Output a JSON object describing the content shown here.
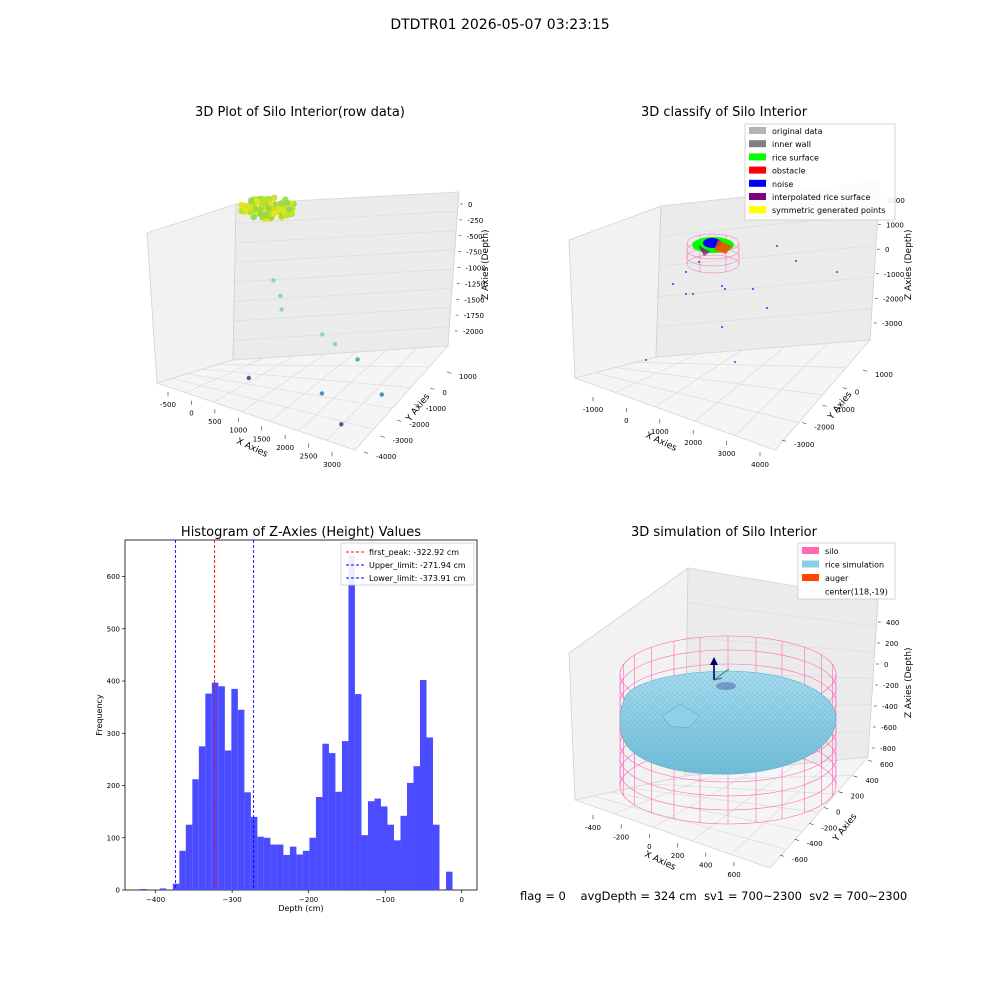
{
  "suptitle": "DTDTR01 2026-05-07 03:23:15",
  "status": {
    "flag": "flag = 0",
    "avg_depth": "avgDepth = 324 cm",
    "sv1": "sv1 = 700~2300",
    "sv2": "sv2 = 700~2300"
  },
  "colors": {
    "hist_bar": "#4b4bff",
    "first_peak": "#ff0000",
    "limits": "#0000ff",
    "silo": "#ff69b4",
    "rice_simulation": "#87ceeb",
    "auger": "#ff4500",
    "original_data": "#b3b3b3",
    "inner_wall": "#808080",
    "rice_surface": "#00ff00",
    "obstacle": "#ff0000",
    "noise": "#0000ff",
    "interpolated_rice_surface": "#800080",
    "symmetric_generated_points": "#ffff00"
  },
  "chart_data": [
    {
      "type": "scatter",
      "subtype": "3d-scatter",
      "title": "3D Plot of Silo Interior(row data)",
      "xlabel": "X Axies",
      "ylabel": "Y Axies",
      "zlabel": "Z Axies (Depth)",
      "x_ticks": [
        "-500",
        "0",
        "500",
        "1000",
        "1500",
        "2000",
        "2500",
        "3000"
      ],
      "y_ticks": [
        "-4000",
        "-3000",
        "-2000",
        "-1000",
        "0",
        "1000"
      ],
      "z_ticks": [
        "0",
        "-250",
        "-500",
        "-750",
        "-1000",
        "-1250",
        "-1500",
        "-1750",
        "-2000"
      ],
      "colormap": "viridis",
      "points": [
        {
          "x": 600,
          "y": 200,
          "z": -1050
        },
        {
          "x": 700,
          "y": -100,
          "z": -1200
        },
        {
          "x": 400,
          "y": 500,
          "z": -900
        },
        {
          "x": 1600,
          "y": -800,
          "z": -1250
        },
        {
          "x": 1800,
          "y": -700,
          "z": -1350
        },
        {
          "x": 2300,
          "y": -1100,
          "z": -1400
        },
        {
          "x": 2600,
          "y": -600,
          "z": -1900
        },
        {
          "x": 1900,
          "y": -2000,
          "z": -1950
        },
        {
          "x": 2500,
          "y": -3000,
          "z": -2150
        },
        {
          "x": 300,
          "y": -800,
          "z": -2300
        }
      ]
    },
    {
      "type": "scatter",
      "subtype": "3d-classify",
      "title": "3D classify of Silo Interior",
      "xlabel": "X Axies",
      "ylabel": "Y Axies",
      "zlabel": "Z Axies (Depth)",
      "x_ticks": [
        "-1000",
        "0",
        "1000",
        "2000",
        "3000",
        "4000"
      ],
      "y_ticks": [
        "-3000",
        "-2000",
        "-1000",
        "0",
        "1000"
      ],
      "z_ticks": [
        "2000",
        "1000",
        "0",
        "-1000",
        "-2000",
        "-3000"
      ],
      "legend": [
        "original data",
        "inner wall",
        "rice surface",
        "obstacle",
        "noise",
        "interpolated rice surface",
        "symmetric generated points"
      ],
      "legend_position": "top-right"
    },
    {
      "type": "bar",
      "subtype": "histogram",
      "title": "Histogram of Z-Axies (Height) Values",
      "xlabel": "Depth (cm)",
      "ylabel": "Frequency",
      "xlim": [
        -440,
        20
      ],
      "ylim": [
        0,
        670
      ],
      "x_ticks": [
        -400,
        -300,
        -200,
        -100,
        0
      ],
      "y_ticks": [
        0,
        100,
        200,
        300,
        400,
        500,
        600
      ],
      "bin_edges_start": -420,
      "bin_width": 8.5,
      "values": [
        2,
        0,
        0,
        3,
        0,
        12,
        75,
        125,
        212,
        275,
        376,
        397,
        390,
        267,
        385,
        345,
        187,
        140,
        102,
        100,
        87,
        87,
        67,
        83,
        68,
        75,
        100,
        178,
        280,
        262,
        188,
        285,
        640,
        375,
        105,
        170,
        175,
        160,
        125,
        95,
        142,
        205,
        237,
        402,
        292,
        125,
        0,
        35
      ],
      "lines": [
        {
          "name": "first_peak: -322.92 cm",
          "x": -322.92,
          "style": "dashed",
          "color": "red"
        },
        {
          "name": "Upper_limit: -271.94 cm",
          "x": -271.94,
          "style": "dashed",
          "color": "blue"
        },
        {
          "name": "Lower_limit: -373.91 cm",
          "x": -373.91,
          "style": "dashed",
          "color": "blue"
        }
      ],
      "legend_position": "top-right"
    },
    {
      "type": "area",
      "subtype": "3d-surface",
      "title": "3D simulation of Silo Interior",
      "xlabel": "X Axies",
      "ylabel": "Y Axies",
      "zlabel": "Z Axies (Depth)",
      "x_ticks": [
        "-400",
        "-200",
        "0",
        "200",
        "400",
        "600"
      ],
      "y_ticks": [
        "-600",
        "-400",
        "-200",
        "0",
        "200",
        "400",
        "600"
      ],
      "z_ticks": [
        "400",
        "200",
        "0",
        "-200",
        "-400",
        "-600",
        "-800"
      ],
      "legend": [
        "silo",
        "rice simulation",
        "auger",
        "center(118,-19)"
      ],
      "legend_position": "top-right"
    }
  ]
}
